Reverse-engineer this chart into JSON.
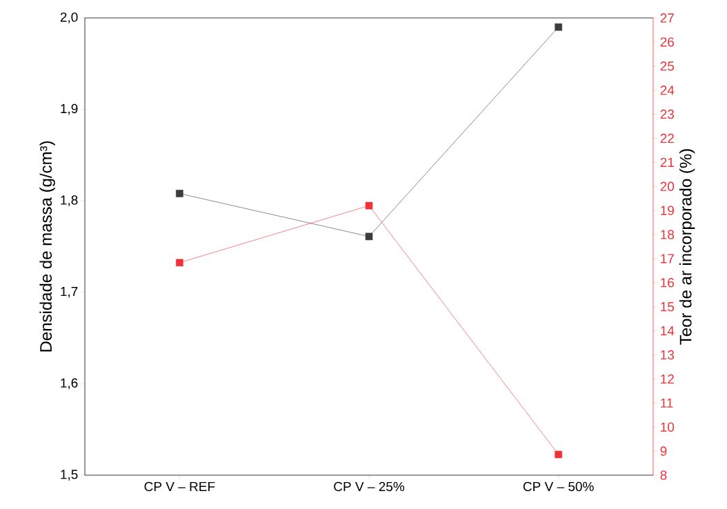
{
  "chart_data": {
    "type": "line",
    "categories": [
      "CP V – REF",
      "CP V – 25%",
      "CP V – 50%"
    ],
    "ylabel": "Densidade de massa (g/cm³)",
    "y2label": "Teor de ar incorporado (%)",
    "series": [
      {
        "color": "#3c3c3c",
        "values": [
          1.808,
          1.761,
          1.99
        ]
      },
      {
        "color": "#ee3338",
        "axis": "y2",
        "values": [
          16.83,
          19.2,
          8.86
        ]
      }
    ],
    "ylim": [
      1.5,
      2.0
    ],
    "yticks": [
      {
        "value": 1.5,
        "label": "1,5"
      },
      {
        "value": 1.6,
        "label": "1,6"
      },
      {
        "value": 1.7,
        "label": "1,7"
      },
      {
        "value": 1.8,
        "label": "1,8"
      },
      {
        "value": 1.9,
        "label": "1,9"
      },
      {
        "value": 2.0,
        "label": "2,0"
      }
    ],
    "y2lim": [
      8,
      27
    ],
    "y2ticks": [
      8,
      9,
      10,
      11,
      12,
      13,
      14,
      15,
      16,
      17,
      18,
      19,
      20,
      21,
      22,
      23,
      24,
      25,
      26,
      27
    ],
    "marker": "square",
    "line_style": "solid"
  }
}
